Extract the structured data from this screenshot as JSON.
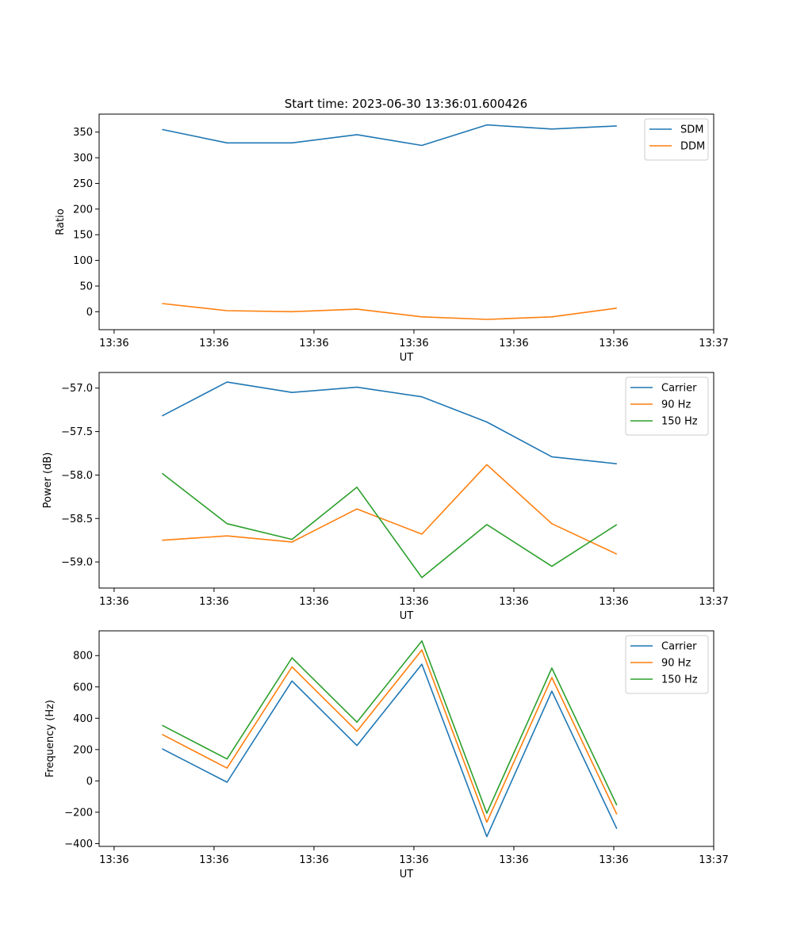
{
  "figure": {
    "title": "Start time: 2023-06-30 13:36:01.600426"
  },
  "colors": {
    "blue": "#1f77b4",
    "orange": "#ff7f0e",
    "green": "#2ca02c"
  },
  "chart_data": [
    {
      "type": "line",
      "xlabel": "UT",
      "ylabel": "Ratio",
      "x_tick_labels": [
        "13:36",
        "13:36",
        "13:36",
        "13:36",
        "13:36",
        "13:36",
        "13:37"
      ],
      "xlim": [
        -0.15,
        6.0
      ],
      "ylim": [
        -35,
        385
      ],
      "y_ticks": [
        0,
        50,
        100,
        150,
        200,
        250,
        300,
        350
      ],
      "legend": "top-right",
      "x": [
        0.48,
        1.13,
        1.78,
        2.43,
        3.08,
        3.73,
        4.38,
        5.03
      ],
      "series": [
        {
          "name": "SDM",
          "color": "#1f77b4",
          "values": [
            355,
            329,
            329,
            345,
            324,
            364,
            356,
            362
          ]
        },
        {
          "name": "DDM",
          "color": "#ff7f0e",
          "values": [
            16,
            2,
            0,
            5,
            -10,
            -15,
            -10,
            7
          ]
        }
      ]
    },
    {
      "type": "line",
      "xlabel": "UT",
      "ylabel": "Power (dB)",
      "x_tick_labels": [
        "13:36",
        "13:36",
        "13:36",
        "13:36",
        "13:36",
        "13:36",
        "13:37"
      ],
      "xlim": [
        -0.15,
        6.0
      ],
      "ylim": [
        -59.3,
        -56.82
      ],
      "y_ticks": [
        -59.0,
        -58.5,
        -58.0,
        -57.5,
        -57.0
      ],
      "y_tick_labels": [
        "−59.0",
        "−58.5",
        "−58.0",
        "−57.5",
        "−57.0"
      ],
      "legend": "top-right",
      "x": [
        0.48,
        1.13,
        1.78,
        2.43,
        3.08,
        3.73,
        4.38,
        5.03
      ],
      "series": [
        {
          "name": "Carrier",
          "color": "#1f77b4",
          "values": [
            -57.32,
            -56.93,
            -57.05,
            -56.99,
            -57.1,
            -57.39,
            -57.79,
            -57.87
          ]
        },
        {
          "name": "90 Hz",
          "color": "#ff7f0e",
          "values": [
            -58.75,
            -58.7,
            -58.77,
            -58.39,
            -58.68,
            -57.88,
            -58.56,
            -58.91
          ]
        },
        {
          "name": "150 Hz",
          "color": "#2ca02c",
          "values": [
            -57.98,
            -58.56,
            -58.74,
            -58.14,
            -59.18,
            -58.57,
            -59.05,
            -58.57
          ]
        }
      ]
    },
    {
      "type": "line",
      "xlabel": "UT",
      "ylabel": "Frequency (Hz)",
      "x_tick_labels": [
        "13:36",
        "13:36",
        "13:36",
        "13:36",
        "13:36",
        "13:36",
        "13:37"
      ],
      "xlim": [
        -0.15,
        6.0
      ],
      "ylim": [
        -418,
        958
      ],
      "y_ticks": [
        -400,
        -200,
        0,
        200,
        400,
        600,
        800
      ],
      "y_tick_labels": [
        "−400",
        "−200",
        "0",
        "200",
        "400",
        "600",
        "800"
      ],
      "legend": "top-right",
      "x": [
        0.48,
        1.13,
        1.78,
        2.43,
        3.08,
        3.73,
        4.38,
        5.03
      ],
      "series": [
        {
          "name": "Carrier",
          "color": "#1f77b4",
          "values": [
            205,
            -8,
            638,
            226,
            745,
            -356,
            573,
            -305
          ]
        },
        {
          "name": "90 Hz",
          "color": "#ff7f0e",
          "values": [
            297,
            82,
            728,
            317,
            836,
            -264,
            660,
            -213
          ]
        },
        {
          "name": "150 Hz",
          "color": "#2ca02c",
          "values": [
            355,
            140,
            786,
            375,
            894,
            -206,
            720,
            -155
          ]
        }
      ]
    }
  ]
}
